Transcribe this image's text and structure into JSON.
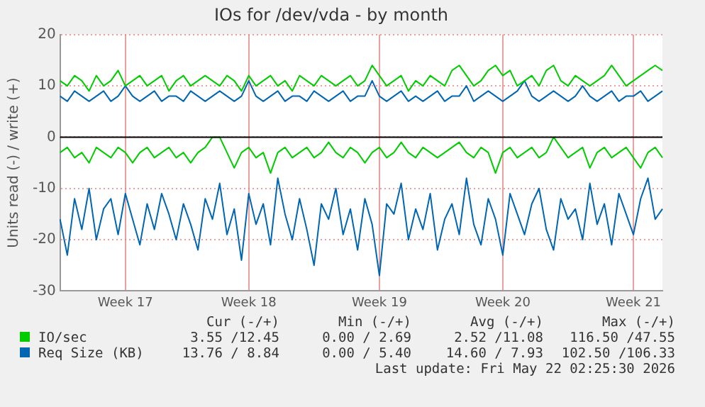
{
  "chart_data": {
    "type": "line",
    "title": "IOs for /dev/vda - by month",
    "ylabel": "Units read (-) / write (+)",
    "categories": [
      null,
      null,
      null,
      null,
      null,
      null,
      null,
      null,
      null,
      "Week 17",
      null,
      null,
      null,
      null,
      null,
      null,
      null,
      null,
      null,
      null,
      null,
      null,
      null,
      null,
      null,
      null,
      "Week 18",
      null,
      null,
      null,
      null,
      null,
      null,
      null,
      null,
      null,
      null,
      null,
      null,
      null,
      null,
      null,
      null,
      null,
      "Week 19",
      null,
      null,
      null,
      null,
      null,
      null,
      null,
      null,
      null,
      null,
      null,
      null,
      null,
      null,
      null,
      null,
      "Week 20",
      null,
      null,
      null,
      null,
      null,
      null,
      null,
      null,
      null,
      null,
      null,
      null,
      null,
      null,
      null,
      null,
      null,
      "Week 21",
      null,
      null,
      null,
      null
    ],
    "series": [
      {
        "name": "IO/sec",
        "color": "#00cc00",
        "values": [
          11,
          10,
          12,
          11,
          9,
          12,
          10,
          11,
          13,
          10,
          11,
          12,
          10,
          11,
          12,
          9,
          11,
          12,
          10,
          11,
          12,
          11,
          10,
          12,
          11,
          9,
          12,
          10,
          11,
          12,
          10,
          11,
          9,
          12,
          11,
          10,
          12,
          11,
          10,
          11,
          12,
          10,
          11,
          14,
          12,
          10,
          11,
          12,
          9,
          11,
          10,
          12,
          11,
          10,
          13,
          14,
          12,
          10,
          11,
          13,
          14,
          12,
          13,
          10,
          11,
          12,
          10,
          13,
          14,
          11,
          10,
          12,
          11,
          10,
          11,
          12,
          14,
          12,
          10,
          11,
          12,
          13,
          14,
          13
        ]
      },
      {
        "color": "#00cc00",
        "values": [
          -3,
          -2,
          -4,
          -3,
          -5,
          -2,
          -3,
          -4,
          -2,
          -3,
          -5,
          -3,
          -2,
          -4,
          -3,
          -2,
          -4,
          -3,
          -5,
          -3,
          -2,
          0,
          0,
          -3,
          -6,
          -3,
          -2,
          -4,
          -3,
          -7,
          -3,
          -2,
          -4,
          -3,
          -2,
          -4,
          -3,
          -1,
          -3,
          -4,
          -2,
          -3,
          -5,
          -3,
          -2,
          -4,
          -3,
          -1,
          -3,
          -4,
          -2,
          -3,
          -4,
          -3,
          -2,
          -1,
          -3,
          -4,
          -2,
          -3,
          -7,
          -3,
          -2,
          -4,
          -3,
          -2,
          -4,
          -3,
          0,
          -2,
          -4,
          -3,
          -2,
          -6,
          -3,
          -2,
          -4,
          -3,
          -2,
          -4,
          -6,
          -3,
          -2,
          -4
        ]
      },
      {
        "name": "Req Size (KB)",
        "color": "#0066b3",
        "values": [
          8,
          7,
          9,
          8,
          7,
          8,
          9,
          7,
          8,
          10,
          8,
          7,
          8,
          9,
          7,
          8,
          8,
          7,
          9,
          8,
          7,
          8,
          9,
          8,
          7,
          8,
          11,
          8,
          7,
          8,
          9,
          7,
          8,
          8,
          7,
          9,
          8,
          7,
          8,
          9,
          7,
          8,
          8,
          11,
          8,
          7,
          8,
          9,
          7,
          8,
          7,
          8,
          9,
          7,
          8,
          8,
          10,
          7,
          8,
          9,
          8,
          7,
          8,
          9,
          11,
          8,
          7,
          8,
          9,
          8,
          7,
          8,
          10,
          8,
          7,
          8,
          9,
          7,
          8,
          8,
          9,
          7,
          8,
          9
        ]
      },
      {
        "color": "#0066b3",
        "values": [
          -16,
          -23,
          -12,
          -18,
          -10,
          -20,
          -14,
          -12,
          -19,
          -11,
          -16,
          -21,
          -13,
          -18,
          -11,
          -15,
          -20,
          -13,
          -17,
          -22,
          -12,
          -16,
          -9,
          -19,
          -14,
          -24,
          -11,
          -17,
          -13,
          -21,
          -8,
          -15,
          -20,
          -12,
          -18,
          -25,
          -13,
          -16,
          -10,
          -19,
          -14,
          -22,
          -12,
          -17,
          -27,
          -13,
          -15,
          -9,
          -20,
          -14,
          -18,
          -11,
          -22,
          -16,
          -13,
          -19,
          -8,
          -17,
          -21,
          -12,
          -16,
          -23,
          -11,
          -15,
          -19,
          -13,
          -10,
          -18,
          -22,
          -12,
          -16,
          -14,
          -20,
          -9,
          -17,
          -13,
          -21,
          -11,
          -15,
          -19,
          -12,
          -8,
          -16,
          -14
        ]
      }
    ],
    "ylim": [
      -30,
      20
    ],
    "yticks": [
      -30,
      -20,
      -10,
      0,
      10,
      20
    ],
    "ref_lines": [
      {
        "axis": "y",
        "value": 0,
        "color": "#000000"
      }
    ],
    "grid": true,
    "legend": "bottom",
    "marker": "none",
    "line_style": "solid",
    "annotations": [
      "Cur (-/+)",
      "Min (-/+)",
      "Avg (-/+)",
      "Max (-/+)",
      "3.55 /12.45",
      "0.00 / 2.69",
      "2.52 /11.08",
      "116.50 /47.55",
      "13.76 / 8.84",
      "0.00 / 5.40",
      "14.60 / 7.93",
      "102.50 /106.33",
      "Last update: Fri May 22 02:25:30 2026"
    ]
  }
}
